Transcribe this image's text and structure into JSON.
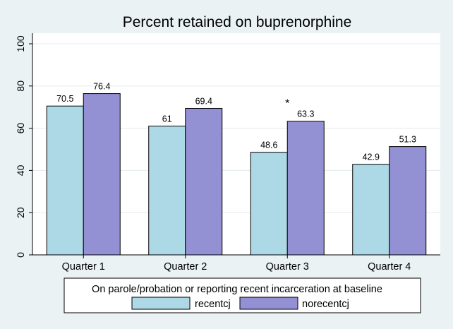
{
  "chart_data": {
    "type": "bar",
    "title": "Percent retained on buprenorphine",
    "categories": [
      "Quarter 1",
      "Quarter 2",
      "Quarter 3",
      "Quarter 4"
    ],
    "series": [
      {
        "name": "recentcj",
        "values": [
          70.5,
          61,
          48.6,
          42.9
        ],
        "labels": [
          "70.5",
          "61",
          "48.6",
          "42.9"
        ],
        "color": "#add8e6"
      },
      {
        "name": "norecentcj",
        "values": [
          76.4,
          69.4,
          63.3,
          51.3
        ],
        "labels": [
          "76.4",
          "69.4",
          "63.3",
          "51.3"
        ],
        "color": "#9390d4"
      }
    ],
    "ylim": [
      0,
      100
    ],
    "yticks": [
      0,
      20,
      40,
      60,
      80,
      100
    ],
    "grid": true,
    "annotations": [
      {
        "category": "Quarter 3",
        "text": "*"
      }
    ],
    "legend": {
      "title": "On parole/probation or reporting recent incarceration at baseline",
      "position": "bottom"
    }
  },
  "colors": {
    "background": "#eaf2f3",
    "plot_area": "#ffffff",
    "grid": "#e3ecee",
    "bar_outline": "#000000"
  }
}
